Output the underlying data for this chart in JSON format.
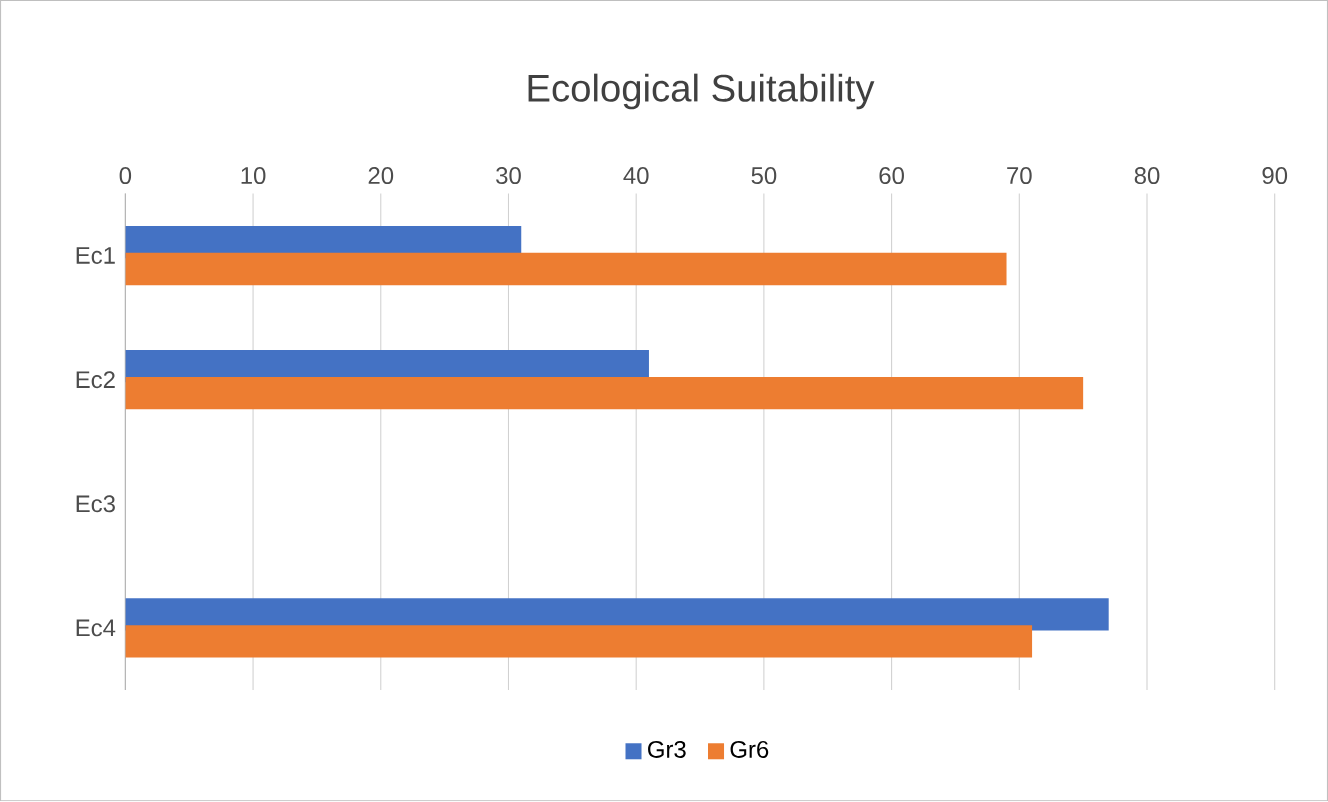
{
  "chart_data": {
    "type": "bar",
    "orientation": "horizontal",
    "title": "Ecological Suitability",
    "categories": [
      "Ec1",
      "Ec2",
      "Ec3",
      "Ec4"
    ],
    "series": [
      {
        "name": "Gr3",
        "color": "#4472c4",
        "values": [
          31,
          41,
          null,
          77
        ]
      },
      {
        "name": "Gr6",
        "color": "#ed7d31",
        "values": [
          69,
          75,
          null,
          71
        ]
      }
    ],
    "xlim": [
      0,
      90
    ],
    "xticks": [
      0,
      10,
      20,
      30,
      40,
      50,
      60,
      70,
      80,
      90
    ],
    "grid": "x",
    "legend": "bottom"
  }
}
